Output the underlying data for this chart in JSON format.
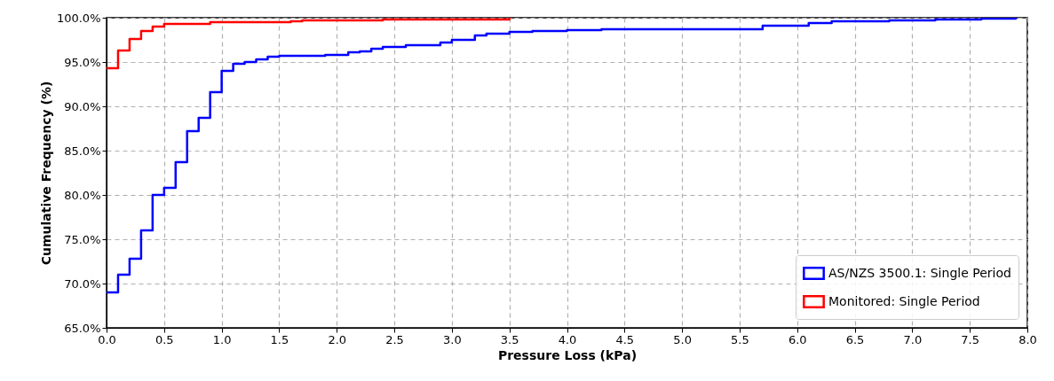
{
  "chart_data": {
    "type": "step",
    "xlabel": "Pressure Loss (kPa)",
    "ylabel": "Cumulative Frequency (%)",
    "xlim": [
      0,
      8
    ],
    "ylim": [
      65,
      100
    ],
    "xticks": [
      {
        "value": 0,
        "label": "0.0"
      },
      0.5,
      {
        "value": 1,
        "label": "1.0"
      },
      1.5,
      {
        "value": 2,
        "label": "2.0"
      },
      2.5,
      {
        "value": 3,
        "label": "3.0"
      },
      3.5,
      {
        "value": 4,
        "label": "4.0"
      },
      4.5,
      {
        "value": 5,
        "label": "5.0"
      },
      5.5,
      {
        "value": 6,
        "label": "6.0"
      },
      6.5,
      {
        "value": 7,
        "label": "7.0"
      },
      7.5,
      {
        "value": 8,
        "label": "8.0"
      }
    ],
    "yticks": [
      {
        "value": 65,
        "label": "65.0%"
      },
      {
        "value": 70,
        "label": "70.0%"
      },
      {
        "value": 75,
        "label": "75.0%"
      },
      {
        "value": 80,
        "label": "80.0%"
      },
      {
        "value": 85,
        "label": "85.0%"
      },
      {
        "value": 90,
        "label": "90.0%"
      },
      {
        "value": 95,
        "label": "95.0%"
      },
      {
        "value": 100,
        "label": "100.0%"
      }
    ],
    "grid": true,
    "legend": "bottom right",
    "series": [
      {
        "name": "AS/NZS 3500.1: Single Period",
        "color": "#0000ff",
        "x": [
          0,
          0.1,
          0.2,
          0.3,
          0.4,
          0.5,
          0.6,
          0.7,
          0.8,
          0.9,
          1.0,
          1.1,
          1.2,
          1.3,
          1.4,
          1.5,
          1.9,
          2.1,
          2.2,
          2.3,
          2.4,
          2.6,
          2.9,
          3.0,
          3.2,
          3.3,
          3.5,
          3.7,
          4.0,
          4.3,
          5.7,
          6.1,
          6.3,
          6.8,
          7.2,
          7.6,
          7.9
        ],
        "values": [
          69.0,
          71.0,
          72.8,
          76.0,
          80.0,
          80.8,
          83.7,
          87.2,
          88.7,
          91.6,
          94.0,
          94.8,
          95.0,
          95.3,
          95.6,
          95.7,
          95.8,
          96.1,
          96.2,
          96.5,
          96.7,
          96.9,
          97.2,
          97.5,
          98.0,
          98.2,
          98.4,
          98.5,
          98.6,
          98.7,
          99.1,
          99.4,
          99.6,
          99.7,
          99.8,
          99.9,
          100
        ]
      },
      {
        "name": "Monitored: Single Period",
        "color": "#ff0000",
        "x": [
          0,
          0.1,
          0.2,
          0.3,
          0.4,
          0.5,
          0.9,
          1.6,
          1.7,
          2.4,
          3.5
        ],
        "values": [
          94.3,
          96.3,
          97.6,
          98.5,
          99.0,
          99.3,
          99.5,
          99.6,
          99.7,
          99.8,
          100
        ]
      }
    ]
  }
}
